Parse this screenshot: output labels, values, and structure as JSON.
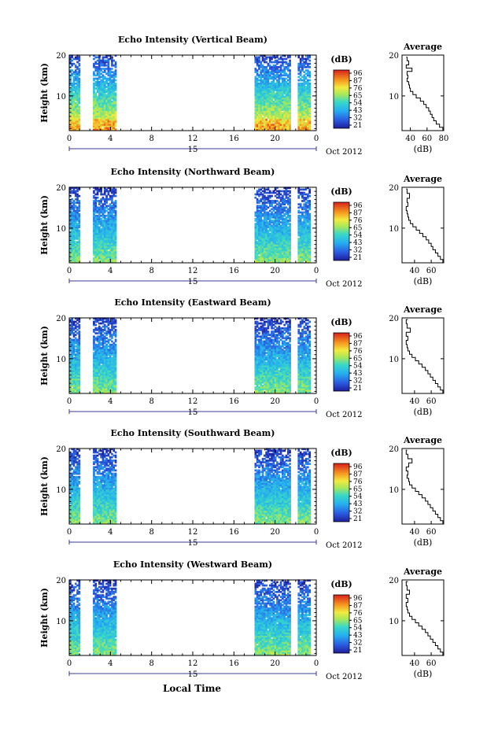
{
  "figure": {
    "xlabel_bottom": "Local Time",
    "colorbar_label": "(dB)",
    "average_title": "Average",
    "average_xlabel": "(dB)",
    "date_label": "Oct 2012",
    "day_label": "15"
  },
  "chart_data": [
    {
      "type": "heatmap",
      "title": "Echo Intensity (Vertical Beam)",
      "ylabel": "Height (km)",
      "x_ticks": [
        "0",
        "4",
        "8",
        "12",
        "16",
        "20",
        "0"
      ],
      "y_ticks": [
        "20",
        "10"
      ],
      "ylim": [
        1.5,
        20
      ],
      "xlim": [
        0,
        24
      ],
      "data_segments": [
        [
          0,
          0.9
        ],
        [
          2.3,
          4.5
        ],
        [
          18.0,
          21.5
        ],
        [
          22.2,
          23.3
        ]
      ],
      "colorbar_ticks": [
        "96",
        "87",
        "76",
        "65",
        "54",
        "43",
        "32",
        "21"
      ],
      "colorbar_range": [
        21,
        96
      ],
      "profile_scale": "tall",
      "average_profile": {
        "x_ticks": [
          "40",
          "60",
          "80"
        ],
        "xlim": [
          30,
          80
        ],
        "y_ticks": [
          "20",
          "10"
        ],
        "ylim": [
          1.5,
          20
        ],
        "x": [
          79,
          75,
          71,
          68,
          66,
          64,
          62,
          59,
          56,
          52,
          47,
          43,
          40,
          39,
          38,
          36,
          37,
          36,
          42,
          35,
          38,
          36,
          35
        ],
        "y": [
          1.5,
          2.3,
          3.1,
          3.9,
          4.7,
          5.5,
          6.3,
          7.1,
          7.9,
          8.7,
          9.5,
          10.3,
          11.1,
          11.9,
          12.7,
          13.5,
          14.3,
          15.1,
          16.0,
          16.8,
          17.6,
          18.6,
          19.5
        ]
      }
    },
    {
      "type": "heatmap",
      "title": "Echo Intensity (Northward Beam)",
      "ylabel": "Height (km)",
      "x_ticks": [
        "0",
        "4",
        "8",
        "12",
        "16",
        "20",
        "0"
      ],
      "y_ticks": [
        "20",
        "10"
      ],
      "ylim": [
        1.5,
        20
      ],
      "xlim": [
        0,
        24
      ],
      "data_segments": [
        [
          0,
          0.9
        ],
        [
          2.3,
          4.5
        ],
        [
          18.0,
          21.5
        ],
        [
          22.2,
          23.3
        ]
      ],
      "colorbar_ticks": [
        "96",
        "87",
        "76",
        "65",
        "54",
        "43",
        "32",
        "21"
      ],
      "colorbar_range": [
        21,
        96
      ],
      "profile_scale": "short",
      "average_profile": {
        "x_ticks": [
          "40",
          "60"
        ],
        "xlim": [
          25,
          75
        ],
        "y_ticks": [
          "20",
          "10"
        ],
        "ylim": [
          1.5,
          20
        ],
        "x": [
          74,
          71,
          68,
          65,
          62,
          60,
          57,
          54,
          50,
          46,
          42,
          38,
          35,
          33,
          32,
          31,
          30,
          32,
          31,
          34,
          31,
          30
        ],
        "y": [
          1.5,
          2.3,
          3.1,
          3.9,
          4.7,
          5.5,
          6.3,
          7.1,
          7.9,
          8.7,
          9.5,
          10.3,
          11.1,
          11.9,
          12.7,
          13.5,
          14.3,
          15.3,
          16.3,
          17.3,
          18.5,
          19.6
        ]
      }
    },
    {
      "type": "heatmap",
      "title": "Echo Intensity (Eastward Beam)",
      "ylabel": "Height (km)",
      "x_ticks": [
        "0",
        "4",
        "8",
        "12",
        "16",
        "20",
        "0"
      ],
      "y_ticks": [
        "20",
        "10"
      ],
      "ylim": [
        1.5,
        20
      ],
      "xlim": [
        0,
        24
      ],
      "data_segments": [
        [
          0,
          0.9
        ],
        [
          2.3,
          4.5
        ],
        [
          18.0,
          21.5
        ],
        [
          22.2,
          23.3
        ]
      ],
      "colorbar_ticks": [
        "96",
        "87",
        "76",
        "65",
        "54",
        "43",
        "32",
        "21"
      ],
      "colorbar_range": [
        21,
        96
      ],
      "profile_scale": "short",
      "average_profile": {
        "x_ticks": [
          "40",
          "60"
        ],
        "xlim": [
          25,
          75
        ],
        "y_ticks": [
          "20",
          "10"
        ],
        "ylim": [
          1.5,
          20
        ],
        "x": [
          74,
          71,
          68,
          65,
          62,
          59,
          56,
          53,
          49,
          45,
          41,
          37,
          34,
          32,
          31,
          30,
          32,
          30,
          35,
          31,
          30,
          32
        ],
        "y": [
          1.5,
          2.3,
          3.1,
          3.9,
          4.7,
          5.5,
          6.3,
          7.1,
          7.9,
          8.7,
          9.5,
          10.3,
          11.1,
          11.9,
          12.7,
          13.5,
          14.5,
          15.5,
          16.5,
          17.5,
          18.6,
          19.6
        ]
      }
    },
    {
      "type": "heatmap",
      "title": "Echo Intensity (Southward Beam)",
      "ylabel": "Height (km)",
      "x_ticks": [
        "0",
        "4",
        "8",
        "12",
        "16",
        "20",
        "0"
      ],
      "y_ticks": [
        "20",
        "10"
      ],
      "ylim": [
        1.5,
        20
      ],
      "xlim": [
        0,
        24
      ],
      "data_segments": [
        [
          0,
          0.9
        ],
        [
          2.3,
          4.5
        ],
        [
          18.0,
          21.5
        ],
        [
          22.2,
          23.3
        ]
      ],
      "colorbar_ticks": [
        "96",
        "87",
        "76",
        "65",
        "54",
        "43",
        "32",
        "21"
      ],
      "colorbar_range": [
        21,
        96
      ],
      "profile_scale": "short",
      "average_profile": {
        "x_ticks": [
          "40",
          "60"
        ],
        "xlim": [
          25,
          75
        ],
        "y_ticks": [
          "20",
          "10"
        ],
        "ylim": [
          1.5,
          20
        ],
        "x": [
          74,
          71,
          68,
          65,
          62,
          59,
          56,
          53,
          49,
          45,
          41,
          37,
          34,
          33,
          31,
          32,
          30,
          33,
          37,
          32,
          30,
          31
        ],
        "y": [
          1.5,
          2.3,
          3.1,
          3.9,
          4.7,
          5.5,
          6.3,
          7.1,
          7.9,
          8.7,
          9.5,
          10.3,
          11.1,
          11.9,
          12.7,
          13.5,
          14.5,
          15.5,
          16.5,
          17.5,
          18.6,
          19.6
        ]
      }
    },
    {
      "type": "heatmap",
      "title": "Echo Intensity (Westward Beam)",
      "ylabel": "Height (km)",
      "x_ticks": [
        "0",
        "4",
        "8",
        "12",
        "16",
        "20",
        "0"
      ],
      "y_ticks": [
        "20",
        "10"
      ],
      "ylim": [
        1.5,
        20
      ],
      "xlim": [
        0,
        24
      ],
      "data_segments": [
        [
          0,
          0.9
        ],
        [
          2.3,
          4.5
        ],
        [
          18.0,
          21.5
        ],
        [
          22.2,
          23.3
        ]
      ],
      "colorbar_ticks": [
        "96",
        "87",
        "76",
        "65",
        "54",
        "43",
        "32",
        "21"
      ],
      "colorbar_range": [
        21,
        96
      ],
      "profile_scale": "short",
      "average_profile": {
        "x_ticks": [
          "40",
          "60"
        ],
        "xlim": [
          25,
          75
        ],
        "y_ticks": [
          "20",
          "10"
        ],
        "ylim": [
          1.5,
          20
        ],
        "x": [
          74,
          71,
          68,
          65,
          62,
          59,
          56,
          53,
          49,
          45,
          41,
          37,
          34,
          32,
          31,
          30,
          32,
          30,
          34,
          31,
          30,
          32
        ],
        "y": [
          1.5,
          2.3,
          3.1,
          3.9,
          4.7,
          5.5,
          6.3,
          7.1,
          7.9,
          8.7,
          9.5,
          10.3,
          11.1,
          11.9,
          12.7,
          13.5,
          14.5,
          15.5,
          16.5,
          17.5,
          18.6,
          19.6
        ]
      }
    }
  ]
}
